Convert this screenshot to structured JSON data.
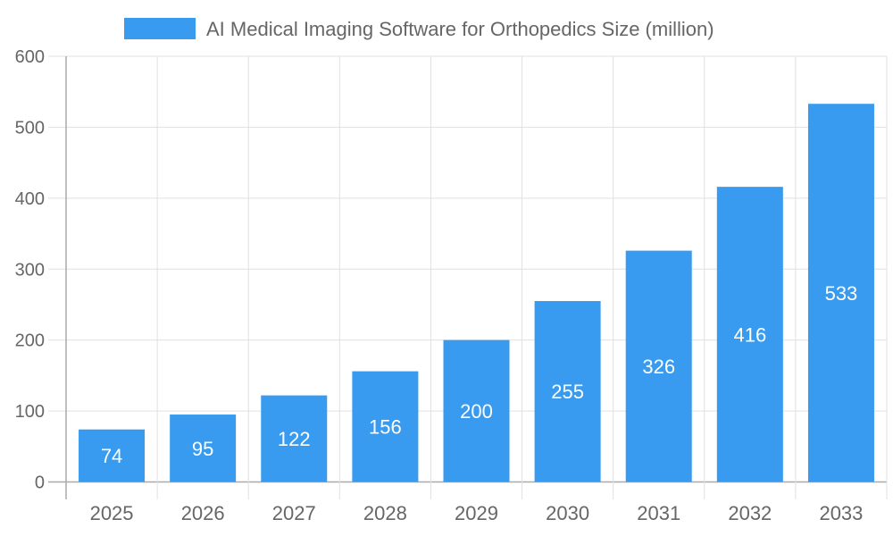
{
  "chart_data": {
    "type": "bar",
    "title": "",
    "categories": [
      "2025",
      "2026",
      "2027",
      "2028",
      "2029",
      "2030",
      "2031",
      "2032",
      "2033"
    ],
    "series": [
      {
        "name": "AI Medical Imaging Software for Orthopedics Size (million)",
        "values": [
          74,
          95,
          122,
          156,
          200,
          255,
          326,
          416,
          533
        ],
        "color": "#389BF0"
      }
    ],
    "xlabel": "",
    "ylabel": "",
    "ylim": [
      0,
      600
    ],
    "yticks": [
      0,
      100,
      200,
      300,
      400,
      500,
      600
    ],
    "grid": true,
    "legend": "top-center",
    "data_labels": true
  }
}
